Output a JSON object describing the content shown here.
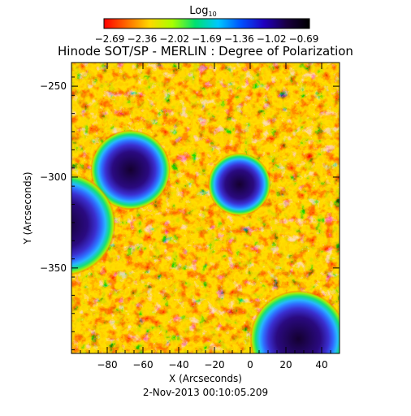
{
  "colorbar": {
    "label": "Log",
    "label_subscript": "10",
    "tick_labels": [
      "-2.69",
      "-2.36",
      "-2.02",
      "-1.69",
      "-1.36",
      "-1.02",
      "-0.69"
    ],
    "range": [
      -2.69,
      -0.69
    ],
    "colors": [
      "#ff0000",
      "#ff6a00",
      "#ffd800",
      "#a8ff00",
      "#00e070",
      "#00c8ff",
      "#0050ff",
      "#2000c0",
      "#1a0040",
      "#000000"
    ]
  },
  "title": "Hinode SOT/SP - MERLIN : Degree of Polarization",
  "image": {
    "xlabel": "X (Arcseconds)",
    "ylabel": "Y (Arcseconds)",
    "x_ticks": [
      "-80",
      "-60",
      "-40",
      "-20",
      "0",
      "20",
      "40"
    ],
    "y_ticks": [
      "-250",
      "-300",
      "-350"
    ],
    "x_range": [
      -100,
      50
    ],
    "y_range": [
      -397,
      -237
    ],
    "spots": [
      {
        "x": -67,
        "y": -296,
        "r": 14
      },
      {
        "x": -104,
        "y": -326,
        "r": 18
      },
      {
        "x": -6,
        "y": -304,
        "r": 11
      },
      {
        "x": 27,
        "y": -389,
        "r": 17
      }
    ]
  },
  "footer": {
    "date": "2-Nov-2013 00:10:05.209"
  }
}
